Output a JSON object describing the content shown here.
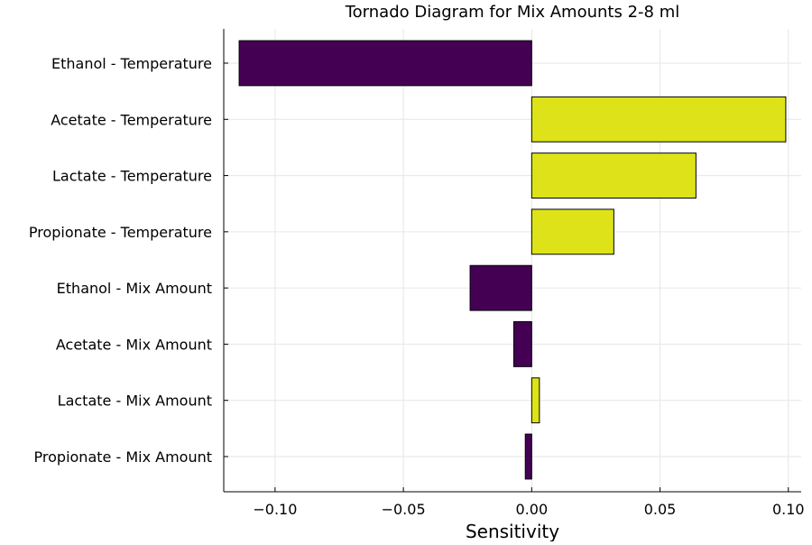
{
  "chart_data": {
    "type": "bar",
    "orientation": "horizontal",
    "title": "Tornado Diagram for Mix Amounts 2-8 ml",
    "xlabel": "Sensitivity",
    "ylabel": "",
    "xlim": [
      -0.12,
      0.105
    ],
    "xticks": [
      -0.1,
      -0.05,
      0.0,
      0.05,
      0.1
    ],
    "xtick_labels": [
      "−0.10",
      "−0.05",
      "0.00",
      "0.05",
      "0.10"
    ],
    "grid": true,
    "legend": "none",
    "categories": [
      "Ethanol - Temperature",
      "Acetate - Temperature",
      "Lactate - Temperature",
      "Propionate - Temperature",
      "Ethanol - Mix Amount",
      "Acetate - Mix Amount",
      "Lactate - Mix Amount",
      "Propionate - Mix Amount"
    ],
    "values": [
      -0.114,
      0.099,
      0.064,
      0.032,
      -0.024,
      -0.007,
      0.003,
      -0.0025
    ],
    "colors": {
      "negative": "#440154",
      "positive": "#dde318",
      "edge": "#000000"
    }
  }
}
